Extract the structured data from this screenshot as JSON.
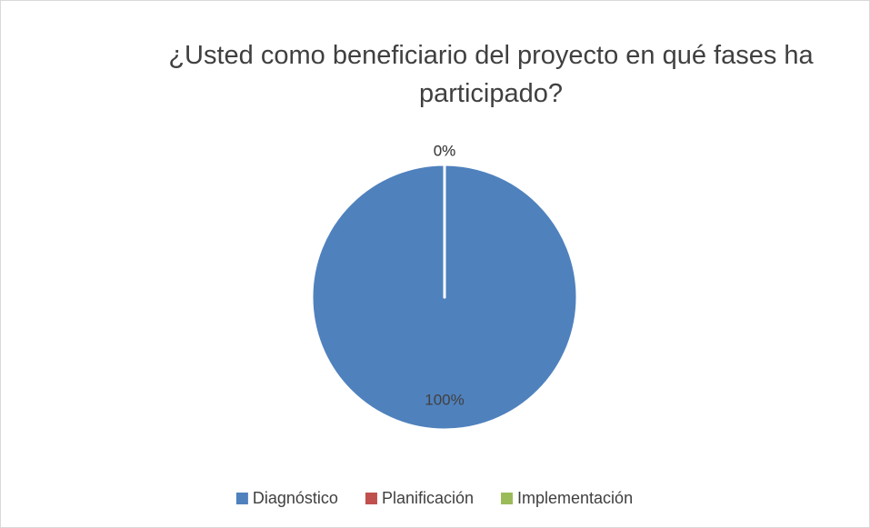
{
  "chart_data": {
    "type": "pie",
    "title": "¿Usted como beneficiario del proyecto en qué fases ha participado?",
    "categories": [
      "Diagnóstico",
      "Planificación",
      "Implementación"
    ],
    "values": [
      100,
      0,
      0
    ],
    "value_labels": [
      "100%",
      "0%",
      "0%"
    ],
    "colors": [
      "#4f81bd",
      "#c0504d",
      "#9bbb59"
    ],
    "legend": "bottom"
  }
}
